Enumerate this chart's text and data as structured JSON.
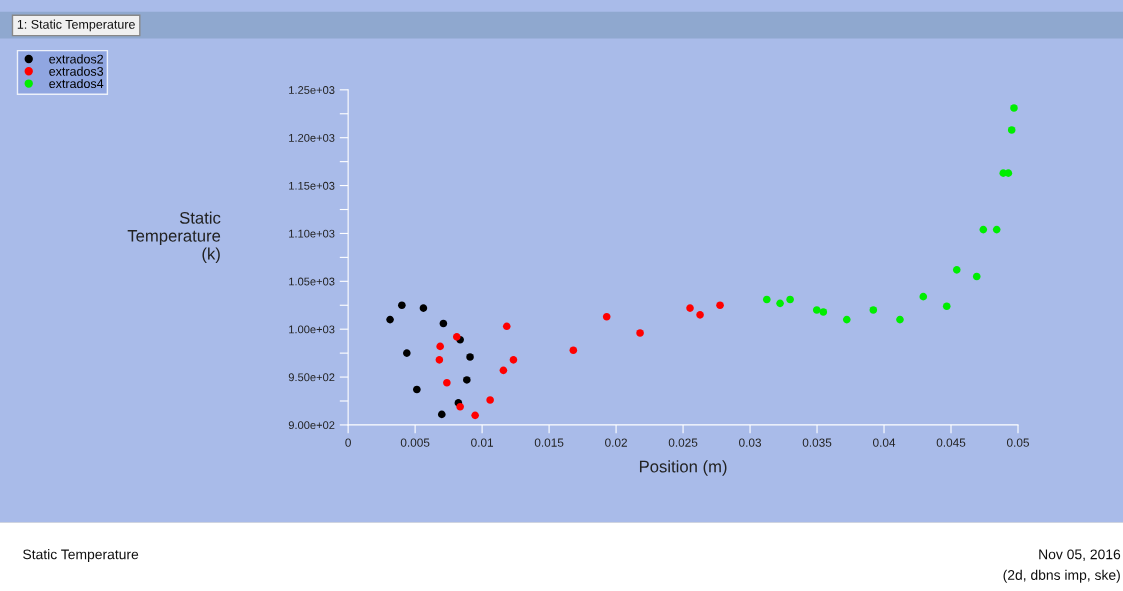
{
  "chart_data": {
    "type": "scatter",
    "marker": "circle",
    "xlabel": "Position (m)",
    "ylabel": "Static\nTemperature\n(k)",
    "annotations": [
      "1: Static Temperature",
      "Static Temperature",
      "Nov 05, 2016",
      "(2d, dbns imp, ske)"
    ],
    "series": [
      {
        "name": "extrados2",
        "color": "#000000",
        "x": [
          0.00401,
          0.00313,
          0.00438,
          0.00513,
          0.00699,
          0.00823,
          0.00886,
          0.0091,
          0.00836,
          0.00711,
          0.00562
        ],
        "values": [
          1025,
          1010,
          975,
          937,
          911,
          923,
          947,
          971,
          989,
          1006,
          1022
        ]
      },
      {
        "name": "extrados3",
        "color": "#ff0000",
        "x": [
          0.00687,
          0.00811,
          0.01184,
          0.0193,
          0.02552,
          0.02776,
          0.02627,
          0.02179,
          0.01681,
          0.01234,
          0.01159,
          0.0106,
          0.00948,
          0.00836,
          0.00737,
          0.00681
        ],
        "values": [
          982,
          992,
          1003,
          1013,
          1022,
          1025,
          1015,
          996,
          978,
          968,
          957,
          926,
          910,
          919,
          944,
          968
        ]
      },
      {
        "name": "extrados4",
        "color": "#00ee00",
        "x": [
          0.03125,
          0.03299,
          0.03547,
          0.0392,
          0.04293,
          0.04543,
          0.04741,
          0.0489,
          0.04953,
          0.0497,
          0.04928,
          0.04841,
          0.04692,
          0.04468,
          0.04119,
          0.03722,
          0.03498,
          0.03224
        ],
        "values": [
          1031,
          1031,
          1018,
          1020,
          1034,
          1062,
          1104,
          1163,
          1208,
          1231,
          1163,
          1104,
          1055,
          1024,
          1010,
          1010,
          1020,
          1027
        ]
      }
    ],
    "xlim": [
      0,
      0.05
    ],
    "xticks": [
      0,
      0.005,
      0.01,
      0.015,
      0.02,
      0.025,
      0.03,
      0.035,
      0.04,
      0.045,
      0.05
    ],
    "ylim": [
      900,
      1250
    ],
    "yticks": [
      {
        "value": 900,
        "label": "9.00e+02"
      },
      {
        "value": 925,
        "label": null
      },
      {
        "value": 950,
        "label": "9.50e+02"
      },
      {
        "value": 975,
        "label": null
      },
      {
        "value": 1000,
        "label": "1.00e+03"
      },
      {
        "value": 1025,
        "label": null
      },
      {
        "value": 1050,
        "label": "1.05e+03"
      },
      {
        "value": 1075,
        "label": null
      },
      {
        "value": 1100,
        "label": "1.10e+03"
      },
      {
        "value": 1125,
        "label": null
      },
      {
        "value": 1150,
        "label": "1.15e+03"
      },
      {
        "value": 1175,
        "label": null
      },
      {
        "value": 1200,
        "label": "1.20e+03"
      },
      {
        "value": 1225,
        "label": null
      },
      {
        "value": 1250,
        "label": "1.25e+03"
      }
    ],
    "grid": false,
    "legend": "top left"
  }
}
